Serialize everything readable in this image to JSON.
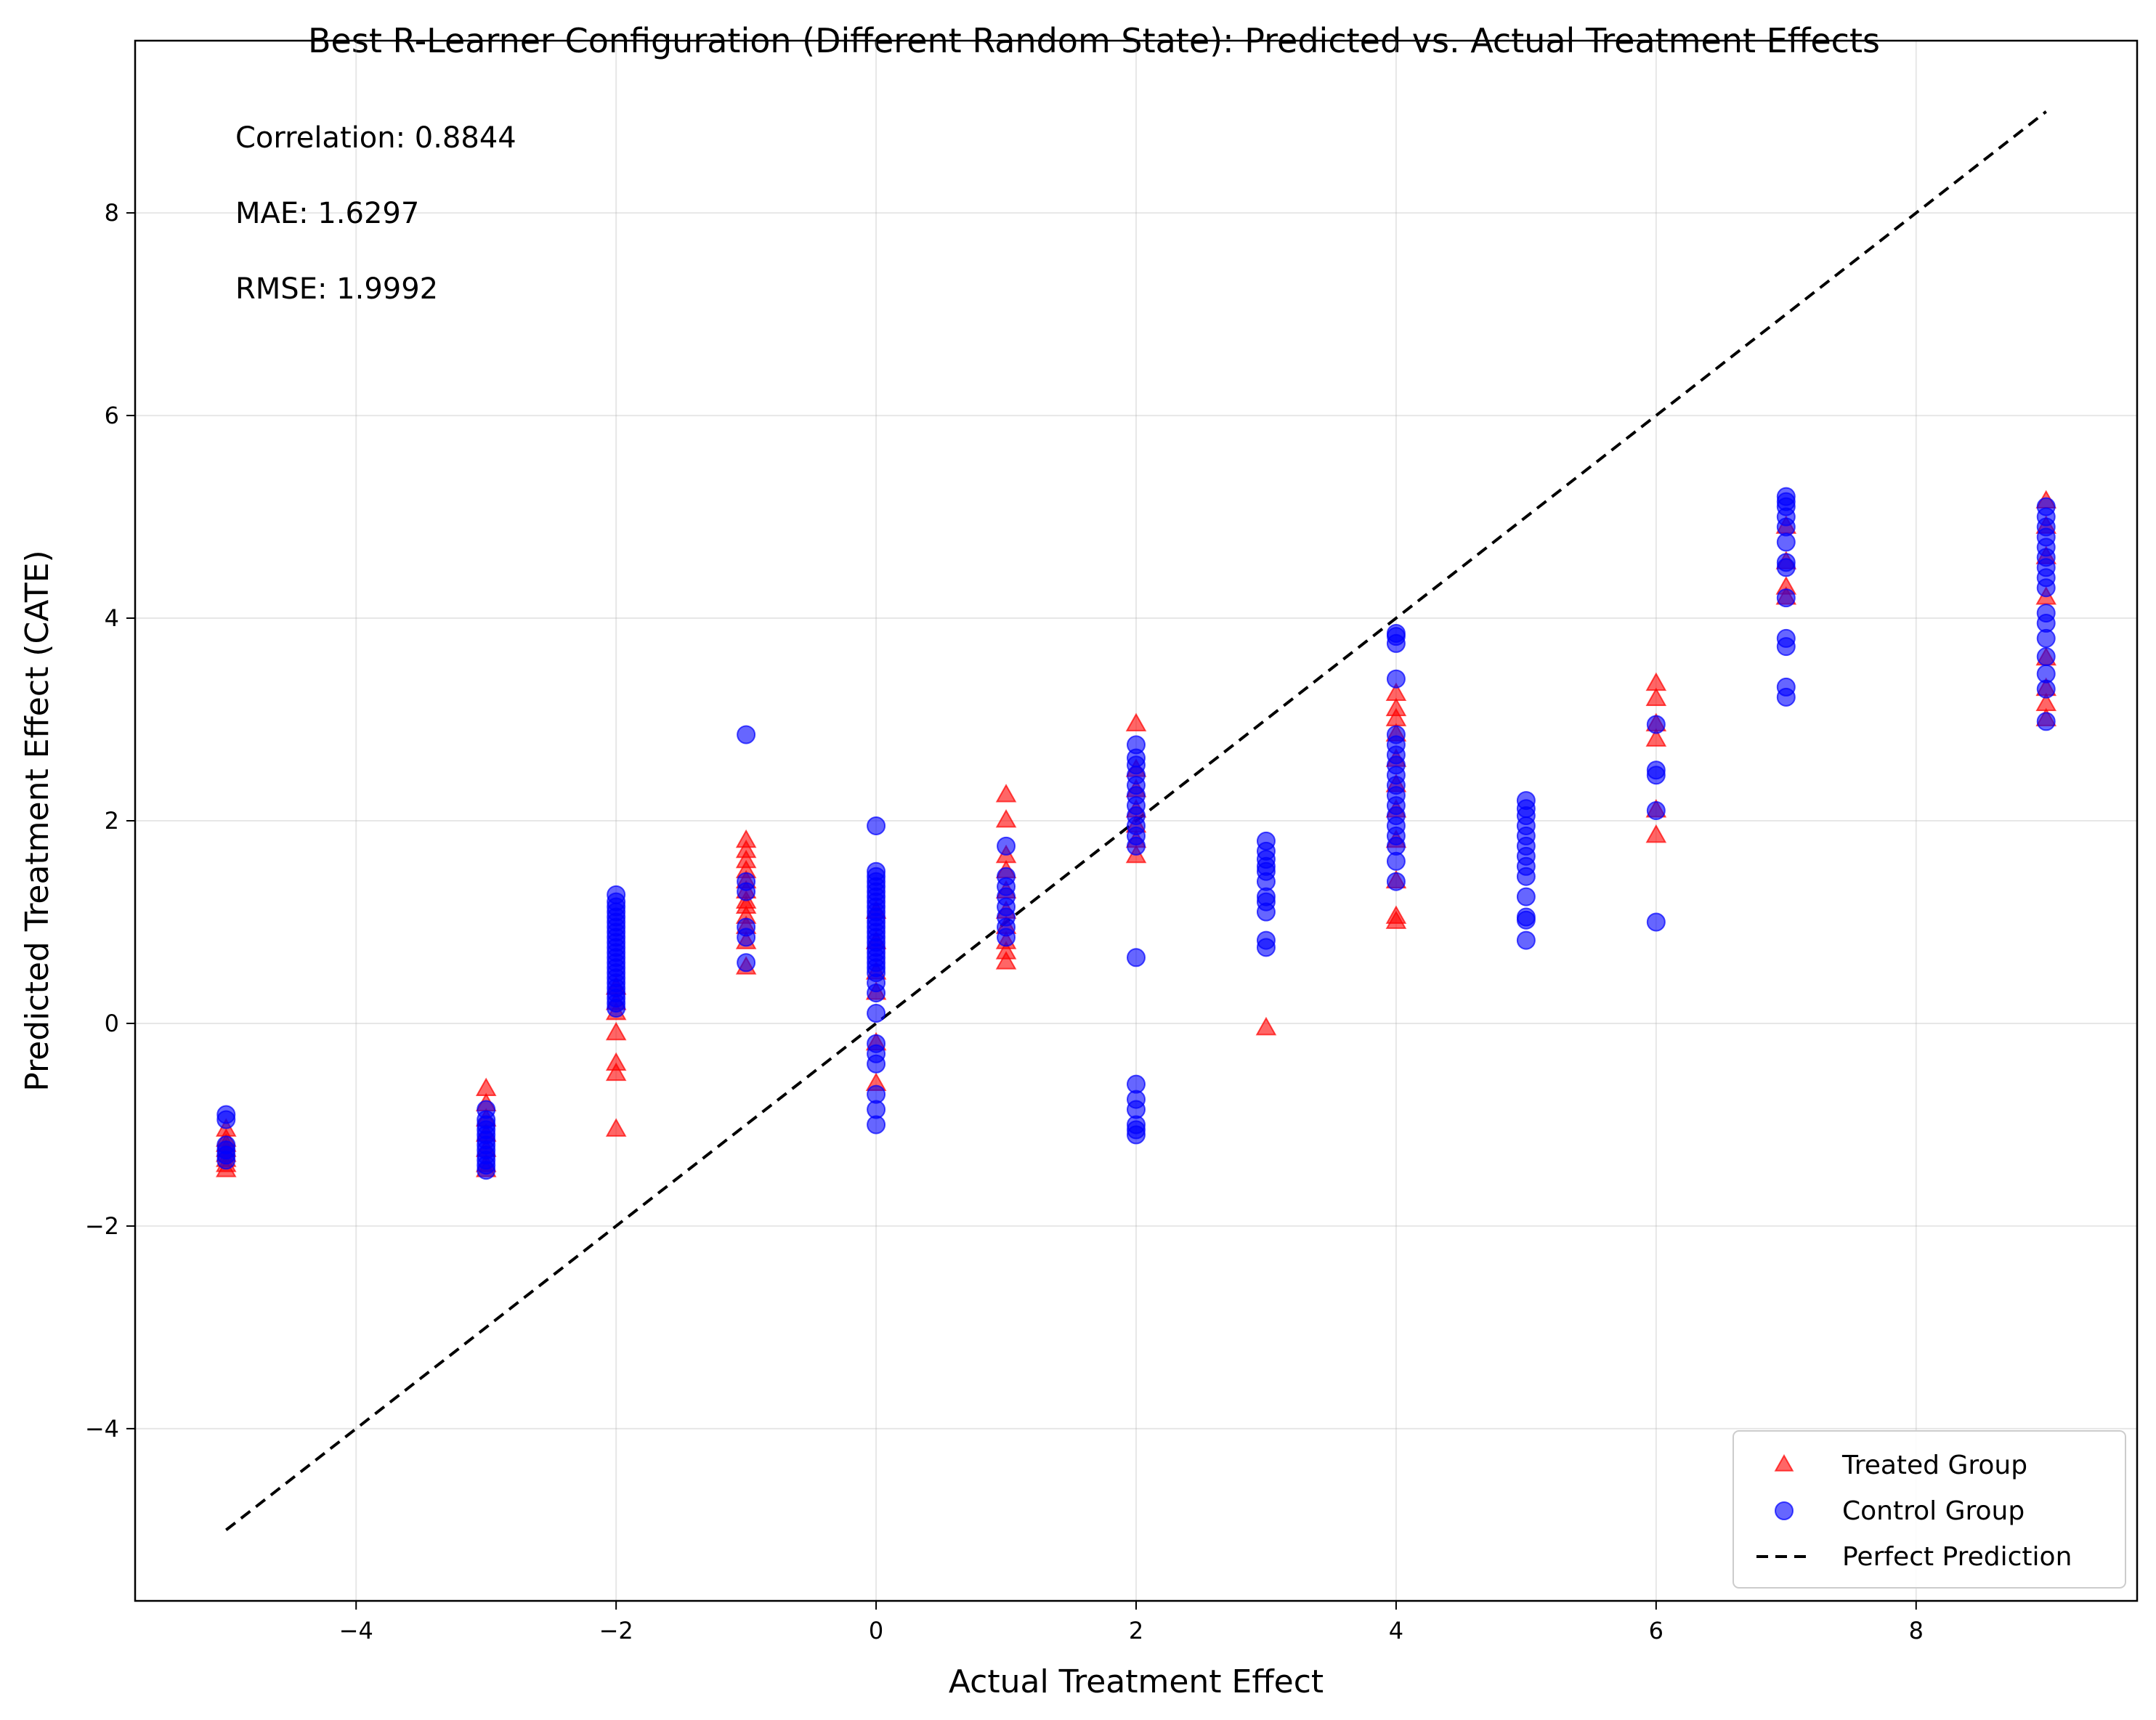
{
  "chart_data": {
    "type": "scatter",
    "title": "Best R-Learner Configuration (Different Random State): Predicted vs. Actual Treatment Effects",
    "xlabel": "Actual Treatment Effect",
    "ylabel": "Predicted Treatment Effect (CATE)",
    "xlim": [
      -5.7,
      9.7
    ],
    "ylim": [
      -5.7,
      9.7
    ],
    "xticks": [
      -4,
      -2,
      0,
      2,
      4,
      6,
      8
    ],
    "yticks": [
      -4,
      -2,
      0,
      2,
      4,
      6,
      8
    ],
    "xtick_labels": [
      "−4",
      "−2",
      "0",
      "2",
      "4",
      "6",
      "8"
    ],
    "ytick_labels": [
      "−4",
      "−2",
      "0",
      "2",
      "4",
      "6",
      "8"
    ],
    "grid": true,
    "annotations": [
      "Correlation: 0.8844",
      "MAE: 1.6297",
      "RMSE: 1.9992"
    ],
    "legend": {
      "placement": "lower-right",
      "entries": [
        "Treated Group",
        "Control Group",
        "Perfect Prediction"
      ]
    },
    "series": [
      {
        "name": "Treated Group",
        "marker": "triangle",
        "color": "#ff0000",
        "points": [
          [
            -5,
            -1.45
          ],
          [
            -5,
            -1.4
          ],
          [
            -5,
            -1.35
          ],
          [
            -5,
            -1.3
          ],
          [
            -5,
            -1.25
          ],
          [
            -5,
            -1.2
          ],
          [
            -5,
            -1.15
          ],
          [
            -5,
            -1.05
          ],
          [
            -3,
            -0.65
          ],
          [
            -3,
            -0.8
          ],
          [
            -3,
            -0.95
          ],
          [
            -3,
            -1.1
          ],
          [
            -3,
            -1.25
          ],
          [
            -3,
            -1.4
          ],
          [
            -3,
            -1.45
          ],
          [
            -2,
            -1.05
          ],
          [
            -2,
            -0.5
          ],
          [
            -2,
            -0.4
          ],
          [
            -2,
            -0.1
          ],
          [
            -2,
            0.1
          ],
          [
            -2,
            0.2
          ],
          [
            -2,
            0.35
          ],
          [
            -1,
            0.55
          ],
          [
            -1,
            0.8
          ],
          [
            -1,
            0.95
          ],
          [
            -1,
            1.05
          ],
          [
            -1,
            1.15
          ],
          [
            -1,
            1.2
          ],
          [
            -1,
            1.3
          ],
          [
            -1,
            1.4
          ],
          [
            -1,
            1.5
          ],
          [
            -1,
            1.6
          ],
          [
            -1,
            1.7
          ],
          [
            -1,
            1.8
          ],
          [
            0,
            -0.6
          ],
          [
            0,
            -0.2
          ],
          [
            0,
            0.3
          ],
          [
            0,
            0.5
          ],
          [
            0,
            0.8
          ],
          [
            0,
            1.1
          ],
          [
            1,
            0.6
          ],
          [
            1,
            0.7
          ],
          [
            1,
            0.8
          ],
          [
            1,
            0.95
          ],
          [
            1,
            1.1
          ],
          [
            1,
            1.3
          ],
          [
            1,
            1.5
          ],
          [
            1,
            1.65
          ],
          [
            1,
            2.0
          ],
          [
            1,
            2.25
          ],
          [
            2,
            1.65
          ],
          [
            2,
            1.8
          ],
          [
            2,
            1.95
          ],
          [
            2,
            2.1
          ],
          [
            2,
            2.3
          ],
          [
            2,
            2.5
          ],
          [
            2,
            2.95
          ],
          [
            3,
            -0.05
          ],
          [
            4,
            1.0
          ],
          [
            4,
            1.05
          ],
          [
            4,
            1.4
          ],
          [
            4,
            1.8
          ],
          [
            4,
            2.1
          ],
          [
            4,
            2.35
          ],
          [
            4,
            2.6
          ],
          [
            4,
            2.85
          ],
          [
            4,
            3.0
          ],
          [
            4,
            3.1
          ],
          [
            4,
            3.25
          ],
          [
            6,
            1.85
          ],
          [
            6,
            2.1
          ],
          [
            6,
            2.8
          ],
          [
            6,
            2.95
          ],
          [
            6,
            3.2
          ],
          [
            6,
            3.35
          ],
          [
            7,
            4.2
          ],
          [
            7,
            4.3
          ],
          [
            7,
            4.55
          ],
          [
            7,
            4.9
          ],
          [
            9,
            3.0
          ],
          [
            9,
            3.15
          ],
          [
            9,
            3.3
          ],
          [
            9,
            3.6
          ],
          [
            9,
            4.2
          ],
          [
            9,
            4.6
          ],
          [
            9,
            4.9
          ],
          [
            9,
            5.15
          ]
        ]
      },
      {
        "name": "Control Group",
        "marker": "circle",
        "color": "#0000ff",
        "points": [
          [
            -5,
            -1.35
          ],
          [
            -5,
            -1.3
          ],
          [
            -5,
            -1.25
          ],
          [
            -5,
            -1.2
          ],
          [
            -5,
            -0.95
          ],
          [
            -5,
            -0.9
          ],
          [
            -3,
            -1.45
          ],
          [
            -3,
            -1.4
          ],
          [
            -3,
            -1.35
          ],
          [
            -3,
            -1.3
          ],
          [
            -3,
            -1.25
          ],
          [
            -3,
            -1.2
          ],
          [
            -3,
            -1.15
          ],
          [
            -3,
            -1.1
          ],
          [
            -3,
            -1.05
          ],
          [
            -3,
            -1.0
          ],
          [
            -3,
            -0.95
          ],
          [
            -3,
            -0.85
          ],
          [
            -2,
            0.15
          ],
          [
            -2,
            0.2
          ],
          [
            -2,
            0.25
          ],
          [
            -2,
            0.3
          ],
          [
            -2,
            0.35
          ],
          [
            -2,
            0.4
          ],
          [
            -2,
            0.45
          ],
          [
            -2,
            0.5
          ],
          [
            -2,
            0.55
          ],
          [
            -2,
            0.6
          ],
          [
            -2,
            0.65
          ],
          [
            -2,
            0.7
          ],
          [
            -2,
            0.75
          ],
          [
            -2,
            0.8
          ],
          [
            -2,
            0.85
          ],
          [
            -2,
            0.9
          ],
          [
            -2,
            0.95
          ],
          [
            -2,
            1.0
          ],
          [
            -2,
            1.05
          ],
          [
            -2,
            1.1
          ],
          [
            -2,
            1.15
          ],
          [
            -2,
            1.2
          ],
          [
            -2,
            1.27
          ],
          [
            -1,
            0.6
          ],
          [
            -1,
            0.85
          ],
          [
            -1,
            0.95
          ],
          [
            -1,
            1.3
          ],
          [
            -1,
            1.4
          ],
          [
            -1,
            2.85
          ],
          [
            0,
            -1.0
          ],
          [
            0,
            -0.85
          ],
          [
            0,
            -0.7
          ],
          [
            0,
            -0.4
          ],
          [
            0,
            -0.3
          ],
          [
            0,
            -0.2
          ],
          [
            0,
            0.1
          ],
          [
            0,
            0.3
          ],
          [
            0,
            0.4
          ],
          [
            0,
            0.5
          ],
          [
            0,
            0.55
          ],
          [
            0,
            0.6
          ],
          [
            0,
            0.65
          ],
          [
            0,
            0.7
          ],
          [
            0,
            0.75
          ],
          [
            0,
            0.8
          ],
          [
            0,
            0.85
          ],
          [
            0,
            0.9
          ],
          [
            0,
            0.95
          ],
          [
            0,
            1.0
          ],
          [
            0,
            1.05
          ],
          [
            0,
            1.1
          ],
          [
            0,
            1.15
          ],
          [
            0,
            1.2
          ],
          [
            0,
            1.25
          ],
          [
            0,
            1.3
          ],
          [
            0,
            1.35
          ],
          [
            0,
            1.4
          ],
          [
            0,
            1.45
          ],
          [
            0,
            1.5
          ],
          [
            0,
            1.95
          ],
          [
            1,
            0.85
          ],
          [
            1,
            0.95
          ],
          [
            1,
            1.05
          ],
          [
            1,
            1.15
          ],
          [
            1,
            1.25
          ],
          [
            1,
            1.35
          ],
          [
            1,
            1.45
          ],
          [
            1,
            1.75
          ],
          [
            2,
            -1.1
          ],
          [
            2,
            -1.05
          ],
          [
            2,
            -1.0
          ],
          [
            2,
            -0.85
          ],
          [
            2,
            -0.75
          ],
          [
            2,
            -0.6
          ],
          [
            2,
            0.65
          ],
          [
            2,
            1.75
          ],
          [
            2,
            1.85
          ],
          [
            2,
            1.95
          ],
          [
            2,
            2.05
          ],
          [
            2,
            2.15
          ],
          [
            2,
            2.25
          ],
          [
            2,
            2.35
          ],
          [
            2,
            2.45
          ],
          [
            2,
            2.55
          ],
          [
            2,
            2.62
          ],
          [
            2,
            2.75
          ],
          [
            3,
            0.75
          ],
          [
            3,
            0.82
          ],
          [
            3,
            1.1
          ],
          [
            3,
            1.2
          ],
          [
            3,
            1.25
          ],
          [
            3,
            1.4
          ],
          [
            3,
            1.5
          ],
          [
            3,
            1.55
          ],
          [
            3,
            1.62
          ],
          [
            3,
            1.7
          ],
          [
            3,
            1.8
          ],
          [
            4,
            1.4
          ],
          [
            4,
            1.6
          ],
          [
            4,
            1.75
          ],
          [
            4,
            1.85
          ],
          [
            4,
            1.95
          ],
          [
            4,
            2.05
          ],
          [
            4,
            2.15
          ],
          [
            4,
            2.25
          ],
          [
            4,
            2.35
          ],
          [
            4,
            2.45
          ],
          [
            4,
            2.55
          ],
          [
            4,
            2.65
          ],
          [
            4,
            2.75
          ],
          [
            4,
            2.85
          ],
          [
            4,
            3.4
          ],
          [
            4,
            3.75
          ],
          [
            4,
            3.82
          ],
          [
            4,
            3.85
          ],
          [
            5,
            0.82
          ],
          [
            5,
            1.02
          ],
          [
            5,
            1.05
          ],
          [
            5,
            1.25
          ],
          [
            5,
            1.45
          ],
          [
            5,
            1.55
          ],
          [
            5,
            1.65
          ],
          [
            5,
            1.75
          ],
          [
            5,
            1.85
          ],
          [
            5,
            1.95
          ],
          [
            5,
            2.05
          ],
          [
            5,
            2.12
          ],
          [
            5,
            2.2
          ],
          [
            6,
            1.0
          ],
          [
            6,
            2.1
          ],
          [
            6,
            2.45
          ],
          [
            6,
            2.5
          ],
          [
            6,
            2.95
          ],
          [
            7,
            3.22
          ],
          [
            7,
            3.32
          ],
          [
            7,
            3.72
          ],
          [
            7,
            3.8
          ],
          [
            7,
            4.2
          ],
          [
            7,
            4.5
          ],
          [
            7,
            4.55
          ],
          [
            7,
            4.75
          ],
          [
            7,
            4.9
          ],
          [
            7,
            5.0
          ],
          [
            7,
            5.1
          ],
          [
            7,
            5.15
          ],
          [
            7,
            5.2
          ],
          [
            9,
            2.98
          ],
          [
            9,
            3.3
          ],
          [
            9,
            3.45
          ],
          [
            9,
            3.62
          ],
          [
            9,
            3.8
          ],
          [
            9,
            3.95
          ],
          [
            9,
            4.05
          ],
          [
            9,
            4.3
          ],
          [
            9,
            4.4
          ],
          [
            9,
            4.5
          ],
          [
            9,
            4.6
          ],
          [
            9,
            4.7
          ],
          [
            9,
            4.8
          ],
          [
            9,
            4.9
          ],
          [
            9,
            5.0
          ],
          [
            9,
            5.1
          ]
        ]
      },
      {
        "name": "Perfect Prediction",
        "marker": "line",
        "style": "dashed",
        "color": "#000000",
        "points": [
          [
            -5,
            -5
          ],
          [
            9,
            9
          ]
        ]
      }
    ]
  }
}
